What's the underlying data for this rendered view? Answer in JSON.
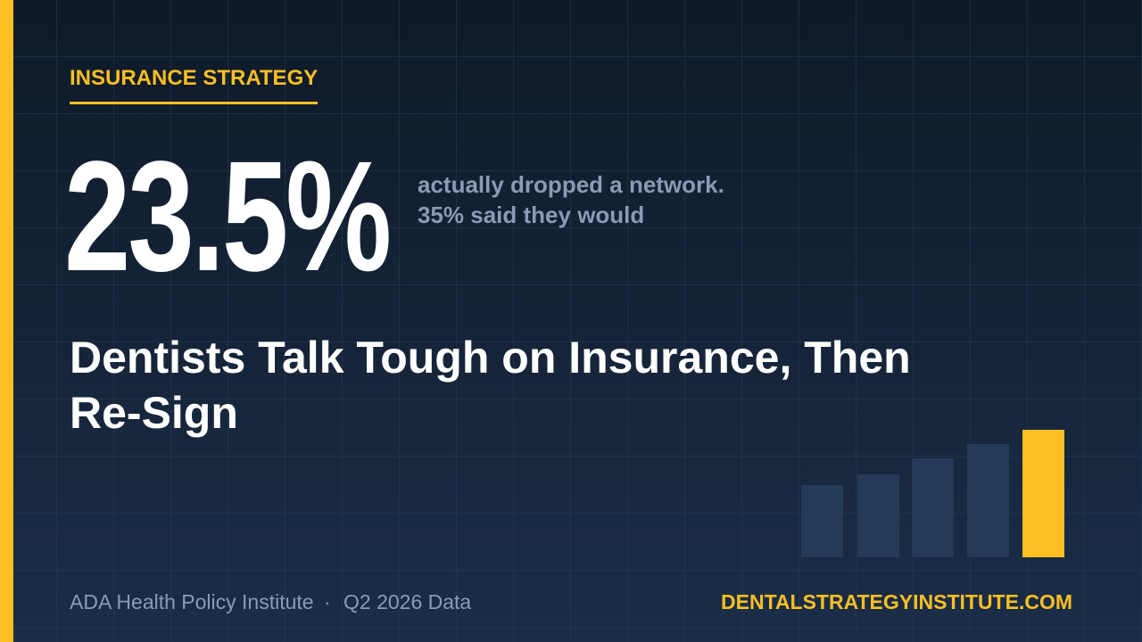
{
  "category": "INSURANCE STRATEGY",
  "stat": {
    "value": "23.5%",
    "lines": [
      "actually dropped a network.",
      "35% said they would"
    ]
  },
  "headline": "Dentists Talk Tough on Insurance, Then Re-Sign",
  "footer": {
    "source": "ADA Health Policy Institute",
    "separator": "·",
    "period": "Q2 2026 Data",
    "website": "DENTALSTRATEGYINSTITUTE.COM"
  }
}
